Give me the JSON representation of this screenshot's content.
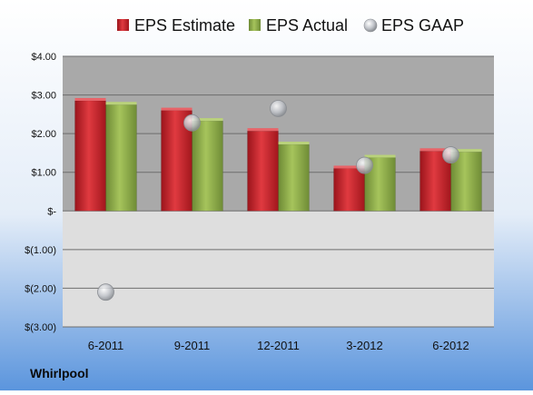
{
  "company": "Whirlpool",
  "colors": {
    "estimate": "#c8242c",
    "actual": "#8fb04a",
    "gaap": "#b9bcc2",
    "bg_top": "#ffffff",
    "bg_bottom": "#5b95dd",
    "plot_upper": "#a9a9a9",
    "plot_lower": "#dedede"
  },
  "chart_data": {
    "type": "bar",
    "categories": [
      "6-2011",
      "9-2011",
      "12-2011",
      "3-2012",
      "6-2012"
    ],
    "series": [
      {
        "name": "EPS Estimate",
        "kind": "bar",
        "values": [
          2.85,
          2.6,
          2.07,
          1.1,
          1.55
        ]
      },
      {
        "name": "EPS Actual",
        "kind": "bar",
        "values": [
          2.75,
          2.33,
          1.72,
          1.38,
          1.53
        ]
      },
      {
        "name": "EPS GAAP",
        "kind": "scatter",
        "values": [
          -2.1,
          2.28,
          2.65,
          1.18,
          1.45
        ]
      }
    ],
    "ylim": [
      -3,
      4
    ],
    "yticks": [
      4,
      3,
      2,
      1,
      0,
      -1,
      -2,
      -3
    ],
    "ytick_labels": [
      "$4.00",
      "$3.00",
      "$2.00",
      "$1.00",
      "$-",
      "$(1.00)",
      "$(2.00)",
      "$(3.00)"
    ],
    "grid": true,
    "legend": "top"
  }
}
